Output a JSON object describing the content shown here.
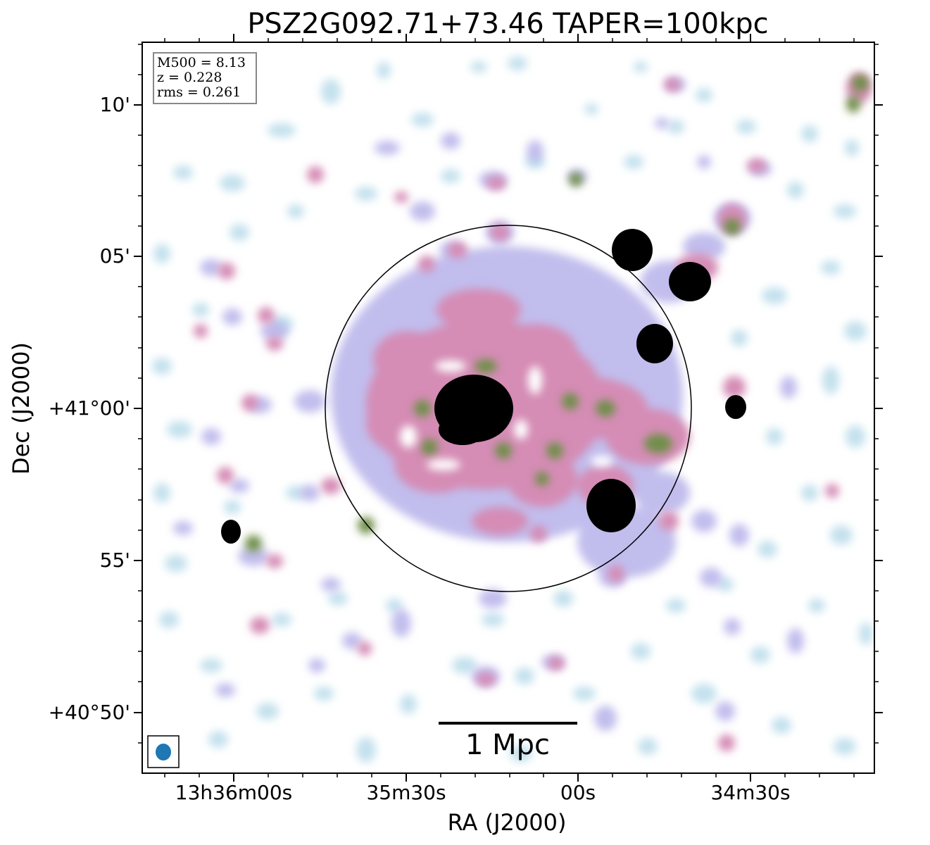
{
  "title": "PSZ2G092.71+73.46 TAPER=100kpc",
  "info": {
    "m500": "M500 = 8.13",
    "z": "z = 0.228",
    "rms": "rms = 0.261"
  },
  "axes": {
    "xlabel": "RA (J2000)",
    "ylabel": "Dec (J2000)",
    "xticks": [
      "13h36m00s",
      "35m30s",
      "00s",
      "34m30s"
    ],
    "yticks": [
      "10'",
      "05'",
      "+41°00'",
      "55'",
      "+40°50'"
    ]
  },
  "scalebar_label": "1 Mpc",
  "colors": {
    "frame": "#000000",
    "faint_emission": "#b9dcea",
    "low_emission": "#b7b2ea",
    "mid_emission": "#d58cb5",
    "high_emission": "#6f8f4a",
    "peak_emission": "#000000",
    "beam": "#1f77b4"
  }
}
